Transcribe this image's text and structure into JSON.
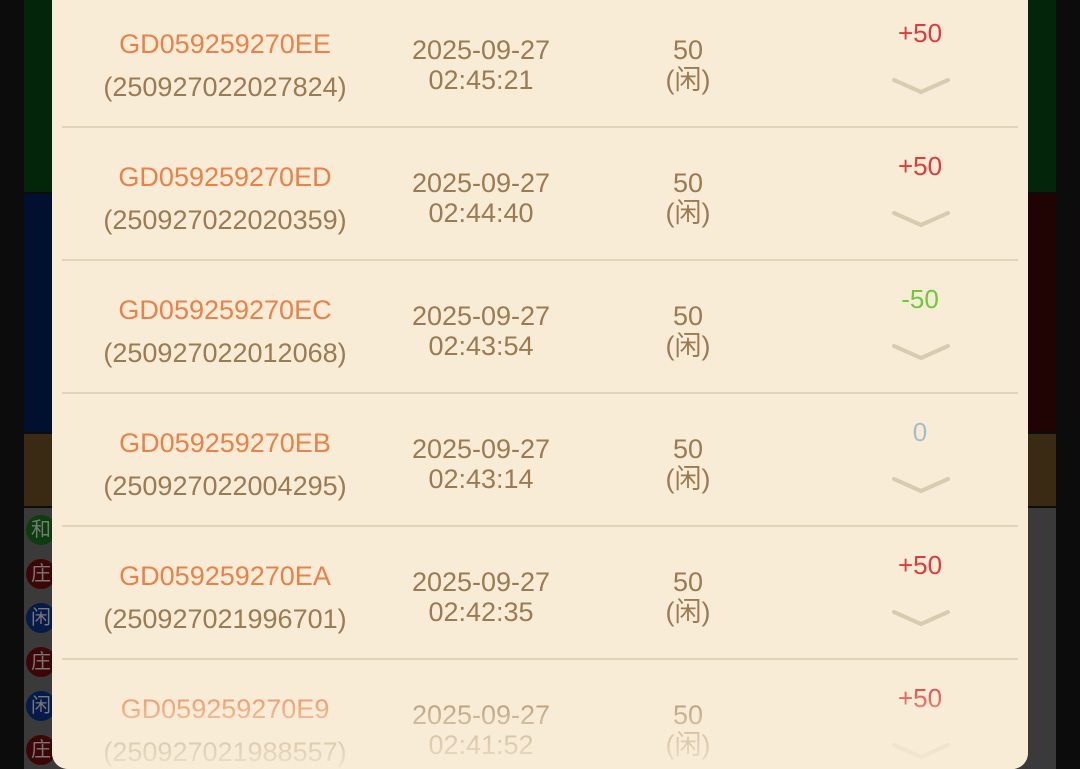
{
  "background": {
    "badges": [
      "和",
      "庄",
      "闲",
      "庄",
      "闲",
      "庄"
    ]
  },
  "records": [
    {
      "order_id": "GD059259270EE",
      "serial": "(250927022027824)",
      "date": "2025-09-27",
      "time": "02:45:21",
      "amount": "50",
      "bet": "(闲)",
      "result": "+50",
      "result_color": "#e03a3a"
    },
    {
      "order_id": "GD059259270ED",
      "serial": "(250927022020359)",
      "date": "2025-09-27",
      "time": "02:44:40",
      "amount": "50",
      "bet": "(闲)",
      "result": "+50",
      "result_color": "#e03a3a"
    },
    {
      "order_id": "GD059259270EC",
      "serial": "(250927022012068)",
      "date": "2025-09-27",
      "time": "02:43:54",
      "amount": "50",
      "bet": "(闲)",
      "result": "-50",
      "result_color": "#6cc93a"
    },
    {
      "order_id": "GD059259270EB",
      "serial": "(250927022004295)",
      "date": "2025-09-27",
      "time": "02:43:14",
      "amount": "50",
      "bet": "(闲)",
      "result": "0",
      "result_color": "#a9bccb"
    },
    {
      "order_id": "GD059259270EA",
      "serial": "(250927021996701)",
      "date": "2025-09-27",
      "time": "02:42:35",
      "amount": "50",
      "bet": "(闲)",
      "result": "+50",
      "result_color": "#e03a3a"
    },
    {
      "order_id": "GD059259270E9",
      "serial": "(250927021988557)",
      "date": "2025-09-27",
      "time": "02:41:52",
      "amount": "50",
      "bet": "(闲)",
      "result": "+50",
      "result_color": "#e03a3a"
    }
  ]
}
